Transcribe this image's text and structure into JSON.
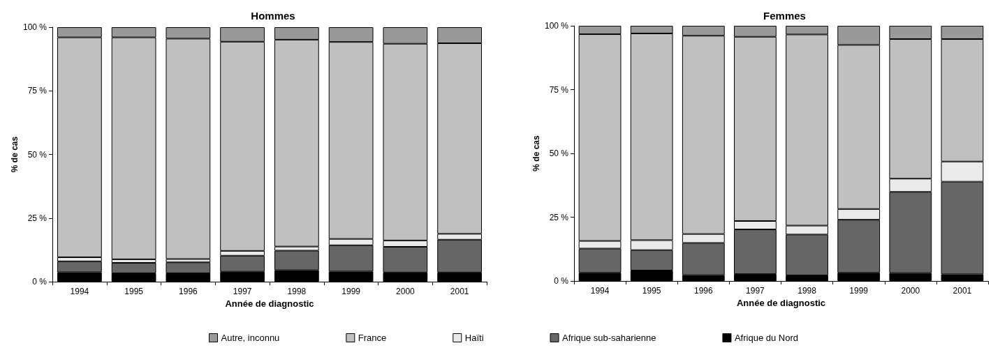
{
  "chart_data": [
    {
      "type": "bar",
      "title": "Hommes",
      "xlabel": "Année de diagnostic",
      "ylabel": "% de cas",
      "stacked": true,
      "grid": false,
      "legend": "bottom",
      "categories": [
        "1994",
        "1995",
        "1996",
        "1997",
        "1998",
        "1999",
        "2000",
        "2001"
      ],
      "ylim": [
        0,
        100
      ],
      "yticks": [
        {
          "value": 0,
          "label": "0 %"
        },
        {
          "value": 25,
          "label": "25 %"
        },
        {
          "value": 50,
          "label": "50 %"
        },
        {
          "value": 75,
          "label": "75 %"
        },
        {
          "value": 100,
          "label": "100 %"
        }
      ],
      "series": [
        {
          "name": "Afrique du Nord",
          "color": "#000000",
          "values": [
            3.7,
            3.3,
            3.3,
            3.9,
            4.5,
            4.0,
            3.6,
            3.6
          ]
        },
        {
          "name": "Afrique sub-saharienne",
          "color": "#666666",
          "values": [
            4.3,
            4.1,
            4.3,
            6.3,
            7.7,
            10.3,
            10.1,
            12.9
          ]
        },
        {
          "name": "Haïti",
          "color": "#eaeaea",
          "values": [
            1.6,
            1.4,
            1.3,
            1.9,
            1.6,
            2.5,
            2.5,
            2.3
          ]
        },
        {
          "name": "France",
          "color": "#c0c0c0",
          "values": [
            86.4,
            87.2,
            86.6,
            82.2,
            81.3,
            77.4,
            77.3,
            74.9
          ]
        },
        {
          "name": "Autre, inconnu",
          "color": "#999999",
          "values": [
            4.0,
            4.0,
            4.5,
            5.7,
            4.9,
            5.8,
            6.5,
            6.3
          ]
        }
      ]
    },
    {
      "type": "bar",
      "title": "Femmes",
      "xlabel": "Année de diagnostic",
      "ylabel": "% de cas",
      "stacked": true,
      "grid": false,
      "categories": [
        "1994",
        "1995",
        "1996",
        "1997",
        "1998",
        "1999",
        "2000",
        "2001"
      ],
      "ylim": [
        0,
        100
      ],
      "yticks": [
        {
          "value": 0,
          "label": "0 %"
        },
        {
          "value": 25,
          "label": "25 %"
        },
        {
          "value": 50,
          "label": "50 %"
        },
        {
          "value": 75,
          "label": "75 %"
        },
        {
          "value": 100,
          "label": "100 %"
        }
      ],
      "series": [
        {
          "color": "#000000",
          "values": [
            3.2,
            4.1,
            2.3,
            2.7,
            2.2,
            3.2,
            3.1,
            2.6
          ]
        },
        {
          "color": "#666666",
          "values": [
            9.5,
            8.0,
            12.6,
            17.5,
            16.0,
            20.8,
            31.8,
            36.3
          ]
        },
        {
          "color": "#eaeaea",
          "values": [
            3.0,
            3.9,
            3.5,
            3.3,
            3.5,
            4.2,
            5.2,
            7.9
          ]
        },
        {
          "color": "#c0c0c0",
          "values": [
            81.0,
            81.0,
            77.7,
            72.2,
            74.9,
            64.3,
            54.7,
            48.0
          ]
        },
        {
          "color": "#999999",
          "values": [
            3.3,
            3.0,
            3.9,
            4.3,
            3.4,
            7.5,
            5.2,
            5.2
          ]
        }
      ]
    }
  ]
}
